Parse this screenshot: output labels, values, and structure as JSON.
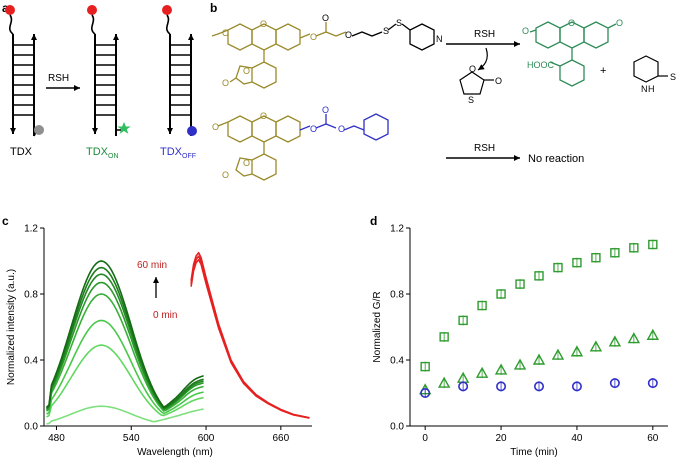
{
  "colors": {
    "olive": "#9a8a2a",
    "green_product": "#2e8b57",
    "blue": "#3030c8",
    "red": "#e62020",
    "green_dark": "#1a6b1a",
    "green_light": "#80e080",
    "star_green": "#2fbf5f",
    "gray_dot": "#909090",
    "marker_green": "#2e9c2e"
  },
  "panels": {
    "a": {
      "label": "a",
      "arrow_label": "RSH",
      "tdx": "TDX",
      "tdx_on_main": "TDX",
      "tdx_on_sub": "ON",
      "tdx_off_main": "TDX",
      "tdx_off_sub": "OFF"
    },
    "b": {
      "label": "b",
      "rsh_top": "RSH",
      "rsh_bottom": "RSH",
      "no_reaction": "No reaction",
      "plus": "+",
      "hooc": "HOOC",
      "atoms": {
        "O": "O",
        "S": "S",
        "N": "N",
        "H": "H"
      }
    },
    "c": {
      "label": "c",
      "ylabel": "Normalized intensity (a.u.)",
      "xlabel": "Wavelength (nm)",
      "annot_top": "60 min",
      "annot_bottom": "0 min"
    },
    "d": {
      "label": "d",
      "ylabel": "Normalized G/R",
      "xlabel": "Time (min)"
    }
  },
  "chart_data": [
    {
      "type": "line",
      "title": "",
      "xlabel": "Wavelength (nm)",
      "ylabel": "Normalized intensity (a.u.)",
      "xlim": [
        470,
        685
      ],
      "ylim": [
        0,
        1.2
      ],
      "xticks": [
        480,
        540,
        600,
        660
      ],
      "xtick_labels": [
        "480",
        "540",
        "600",
        "660"
      ],
      "yticks": [
        0,
        0.4,
        0.8,
        1.2
      ],
      "ytick_labels": [
        "0.0",
        "0.4",
        "0.8",
        "1.2"
      ],
      "green_peaks": [
        0.12,
        0.49,
        0.64,
        0.8,
        0.87,
        0.92,
        0.96,
        1.0
      ],
      "green_end": [
        0.1,
        0.16,
        0.19,
        0.22,
        0.24,
        0.25,
        0.26,
        0.28
      ],
      "green_colors": [
        "#7fe07f",
        "#60d860",
        "#48c848",
        "#38b038",
        "#2a9a2a",
        "#238a23",
        "#1c7a1c",
        "#146b14"
      ],
      "red_series": {
        "x": [
          588,
          590,
          592,
          594,
          596,
          600,
          610,
          620,
          630,
          640,
          650,
          660,
          670,
          683
        ],
        "y": [
          0.88,
          0.98,
          1.03,
          1.05,
          1.02,
          0.9,
          0.62,
          0.4,
          0.27,
          0.19,
          0.14,
          0.1,
          0.07,
          0.05
        ]
      }
    },
    {
      "type": "scatter",
      "title": "",
      "xlabel": "Time (min)",
      "ylabel": "Normalized G/R",
      "xlim": [
        -4,
        64
      ],
      "ylim": [
        0,
        1.2
      ],
      "xticks": [
        0,
        20,
        40,
        60
      ],
      "xtick_labels": [
        "0",
        "20",
        "40",
        "60"
      ],
      "yticks": [
        0,
        0.4,
        0.8,
        1.2
      ],
      "ytick_labels": [
        "0.0",
        "0.4",
        "0.8",
        "1.2"
      ],
      "series": [
        {
          "name": "square",
          "marker": "square",
          "color": "#2e9c2e",
          "x": [
            0,
            5,
            10,
            15,
            20,
            25,
            30,
            35,
            40,
            45,
            50,
            55,
            60
          ],
          "y": [
            0.36,
            0.54,
            0.64,
            0.73,
            0.8,
            0.86,
            0.91,
            0.96,
            0.99,
            1.02,
            1.05,
            1.08,
            1.1
          ]
        },
        {
          "name": "triangle",
          "marker": "triangle",
          "color": "#2e9c2e",
          "x": [
            0,
            5,
            10,
            15,
            20,
            25,
            30,
            35,
            40,
            45,
            50,
            55,
            60
          ],
          "y": [
            0.22,
            0.26,
            0.29,
            0.32,
            0.34,
            0.37,
            0.4,
            0.43,
            0.45,
            0.48,
            0.51,
            0.53,
            0.55
          ]
        },
        {
          "name": "circle",
          "marker": "circle",
          "color": "#3030c8",
          "x": [
            0,
            10,
            20,
            30,
            40,
            50,
            60
          ],
          "y": [
            0.2,
            0.24,
            0.24,
            0.24,
            0.24,
            0.26,
            0.26
          ]
        }
      ]
    }
  ]
}
